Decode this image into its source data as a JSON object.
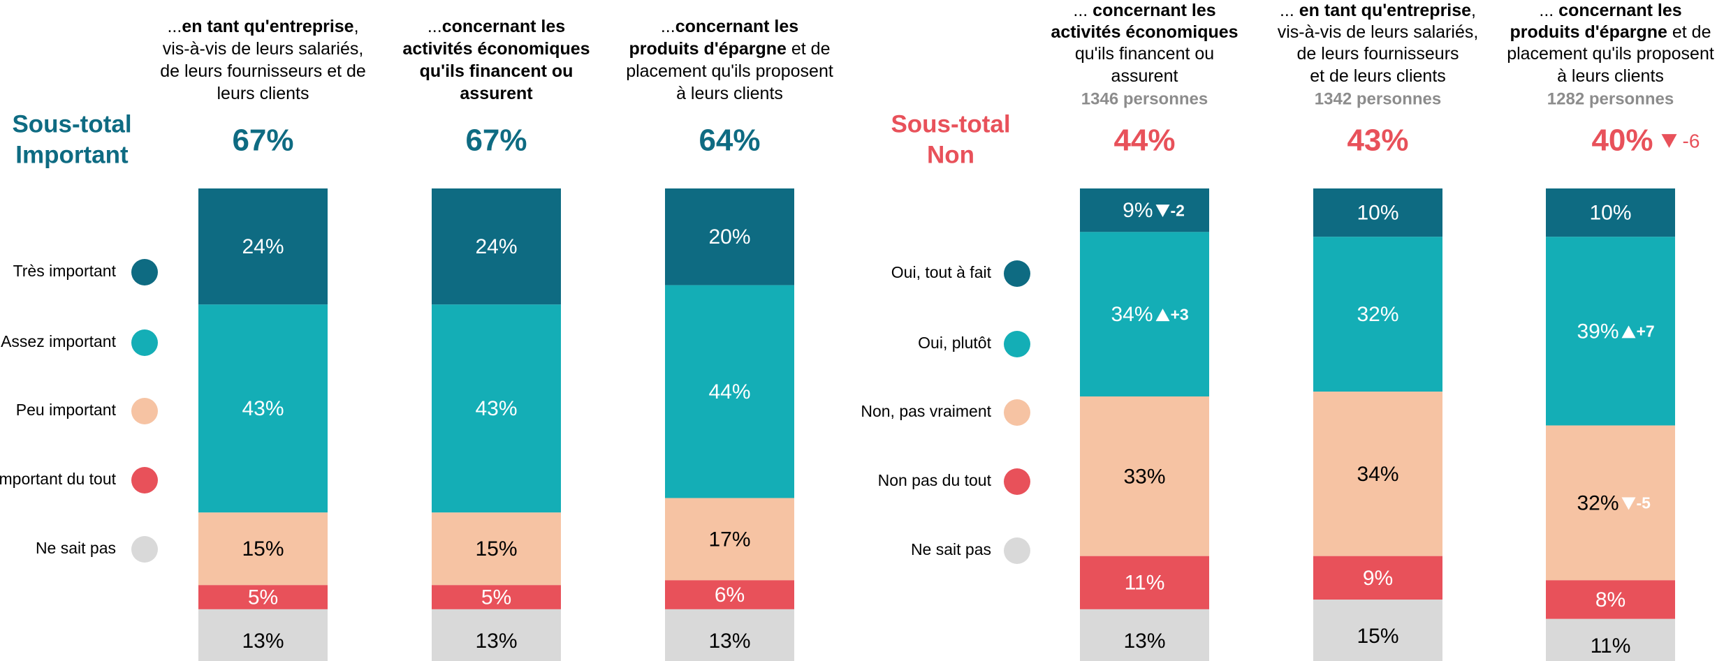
{
  "chart_data": [
    {
      "type": "stacked_bar",
      "title_lines": [
        "Sous-total",
        "Important"
      ],
      "title_color": "#0e6b82",
      "categories": [
        [
          [
            {
              "text": "..."
            },
            {
              "text": "en tant qu'entreprise",
              "bold": true
            },
            {
              "text": ","
            }
          ],
          [
            {
              "text": "vis-à-vis de leurs salariés,"
            }
          ],
          [
            {
              "text": "de leurs fournisseurs et de"
            }
          ],
          [
            {
              "text": "leurs clients"
            }
          ]
        ],
        [
          [
            {
              "text": "..."
            },
            {
              "text": "concernant les",
              "bold": true
            }
          ],
          [
            {
              "text": "activités économiques",
              "bold": true
            }
          ],
          [
            {
              "text": "qu'ils financent ou",
              "bold": true
            }
          ],
          [
            {
              "text": "assurent",
              "bold": true
            }
          ]
        ],
        [
          [
            {
              "text": "..."
            },
            {
              "text": "concernant les",
              "bold": true
            }
          ],
          [
            {
              "text": "produits d'épargne",
              "bold": true
            },
            {
              "text": " et de"
            }
          ],
          [
            {
              "text": "placement qu'ils proposent"
            }
          ],
          [
            {
              "text": "à leurs clients"
            }
          ]
        ]
      ],
      "subtotals": [
        67,
        67,
        64
      ],
      "subtotal_labels": [
        "67%",
        "67%",
        "64%"
      ],
      "ylim": [
        0,
        100
      ],
      "series": [
        {
          "name": "Très important",
          "color": "#0e6b82",
          "label_color": "#ffffff",
          "values": [
            24,
            24,
            20
          ],
          "value_labels": [
            "24%",
            "24%",
            "20%"
          ]
        },
        {
          "name": "Assez important",
          "color": "#14aeb6",
          "label_color": "#ffffff",
          "values": [
            43,
            43,
            44
          ],
          "value_labels": [
            "43%",
            "43%",
            "44%"
          ]
        },
        {
          "name": "Peu important",
          "color": "#f6c3a3",
          "label_color": "#000000",
          "values": [
            15,
            15,
            17
          ],
          "value_labels": [
            "15%",
            "15%",
            "17%"
          ]
        },
        {
          "name": "Pas important du tout",
          "color": "#e8515a",
          "label_color": "#ffffff",
          "values": [
            5,
            5,
            6
          ],
          "value_labels": [
            "5%",
            "5%",
            "6%"
          ]
        },
        {
          "name": "Ne sait pas",
          "color": "#d9d9d9",
          "label_color": "#000000",
          "values": [
            13,
            13,
            13
          ],
          "value_labels": [
            "13%",
            "13%",
            "13%"
          ]
        }
      ]
    },
    {
      "type": "stacked_bar",
      "title_lines": [
        "Sous-total",
        "Non"
      ],
      "title_color": "#e8515a",
      "categories": [
        [
          [
            {
              "text": "... "
            },
            {
              "text": "concernant les",
              "bold": true
            }
          ],
          [
            {
              "text": "activités économiques",
              "bold": true
            }
          ],
          [
            {
              "text": "qu'ils financent ou"
            }
          ],
          [
            {
              "text": "assurent"
            }
          ]
        ],
        [
          [
            {
              "text": "... "
            },
            {
              "text": "en tant qu'entreprise",
              "bold": true
            },
            {
              "text": ","
            }
          ],
          [
            {
              "text": "vis-à-vis de leurs salariés,"
            }
          ],
          [
            {
              "text": "de leurs fournisseurs"
            }
          ],
          [
            {
              "text": "et de leurs clients"
            }
          ]
        ],
        [
          [
            {
              "text": "... "
            },
            {
              "text": "concernant les",
              "bold": true
            }
          ],
          [
            {
              "text": "produits d'épargne",
              "bold": true
            },
            {
              "text": " et de"
            }
          ],
          [
            {
              "text": "placement qu'ils proposent"
            }
          ],
          [
            {
              "text": "à leurs clients"
            }
          ]
        ]
      ],
      "counts": [
        "1346 personnes",
        "1342 personnes",
        "1282 personnes"
      ],
      "subtotals": [
        44,
        43,
        40
      ],
      "subtotal_labels": [
        "44%",
        "43%",
        "40%"
      ],
      "subtotal_changes": [
        null,
        null,
        -6
      ],
      "ylim": [
        0,
        100
      ],
      "series": [
        {
          "name": "Oui, tout à fait",
          "color": "#0e6b82",
          "label_color": "#ffffff",
          "values": [
            9,
            10,
            10
          ],
          "value_labels": [
            "9%",
            "10%",
            "10%"
          ],
          "changes": [
            -2,
            null,
            null
          ]
        },
        {
          "name": "Oui, plutôt",
          "color": "#14aeb6",
          "label_color": "#ffffff",
          "values": [
            34,
            32,
            39
          ],
          "value_labels": [
            "34%",
            "32%",
            "39%"
          ],
          "changes": [
            {
              "value": 3,
              "label": "+3"
            },
            null,
            {
              "value": 7,
              "label": "+7"
            }
          ]
        },
        {
          "name": "Non, pas vraiment",
          "color": "#f6c3a3",
          "label_color": "#000000",
          "values": [
            33,
            34,
            32
          ],
          "value_labels": [
            "33%",
            "34%",
            "32%"
          ],
          "changes": [
            null,
            null,
            -5
          ]
        },
        {
          "name": "Non pas du tout",
          "color": "#e8515a",
          "label_color": "#ffffff",
          "values": [
            11,
            9,
            8
          ],
          "value_labels": [
            "11%",
            "9%",
            "8%"
          ]
        },
        {
          "name": "Ne sait pas",
          "color": "#d9d9d9",
          "label_color": "#000000",
          "values": [
            13,
            15,
            11
          ],
          "value_labels": [
            "13%",
            "15%",
            "11%"
          ]
        }
      ]
    }
  ]
}
